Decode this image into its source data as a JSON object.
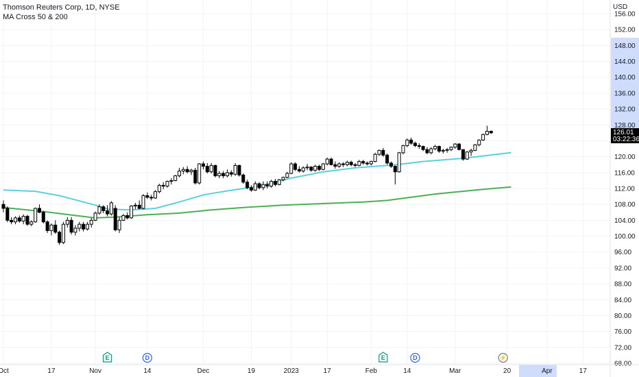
{
  "legend": {
    "symbol_line": "Thomson Reuters Corp, 1D, NYSE",
    "indicator_line": "MA Cross 50 & 200"
  },
  "axis": {
    "currency": "USD",
    "y_ticks": [
      "68.00",
      "72.00",
      "76.00",
      "80.00",
      "84.00",
      "88.00",
      "92.00",
      "96.00",
      "100.00",
      "104.00",
      "108.00",
      "112.00",
      "116.00",
      "120.00",
      "124.00",
      "128.00",
      "132.00",
      "136.00",
      "140.00",
      "144.00",
      "148.00",
      "152.00",
      "156.00"
    ],
    "x_ticks": [
      {
        "label": "Oct",
        "at": 0
      },
      {
        "label": "17",
        "at": 12
      },
      {
        "label": "Nov",
        "at": 23
      },
      {
        "label": "14",
        "at": 36
      },
      {
        "label": "Dec",
        "at": 50
      },
      {
        "label": "19",
        "at": 62
      },
      {
        "label": "2023",
        "at": 72
      },
      {
        "label": "17",
        "at": 81
      },
      {
        "label": "Feb",
        "at": 92
      },
      {
        "label": "14",
        "at": 101
      },
      {
        "label": "Mar",
        "at": 113
      },
      {
        "label": "20",
        "at": 126
      },
      {
        "label": "Apr",
        "at": 136
      },
      {
        "label": "17",
        "at": 145
      }
    ]
  },
  "price_badge": {
    "price": "126.01",
    "countdown": "03:22:36"
  },
  "events": [
    {
      "label": "E",
      "at": 26,
      "type": "earnings",
      "color": "#089981"
    },
    {
      "label": "D",
      "at": 36,
      "type": "dividend",
      "color": "#2962ff"
    },
    {
      "label": "E",
      "at": 95,
      "type": "earnings",
      "color": "#089981"
    },
    {
      "label": "D",
      "at": 103,
      "type": "dividend",
      "color": "#2962ff"
    },
    {
      "label": "⚡",
      "at": 125,
      "type": "split",
      "color": "#787b86"
    }
  ],
  "chart_data": {
    "type": "candlestick",
    "title": "Thomson Reuters Corp, 1D, NYSE",
    "ylim": [
      68,
      156
    ],
    "last_price": 126.01,
    "colors": {
      "up": "#ffffff",
      "down": "#000000",
      "ma50": "#5ad1d8",
      "ma200": "#4caf50"
    },
    "candles": [
      [
        108.0,
        109.0,
        106.0,
        107.0
      ],
      [
        107.0,
        107.5,
        103.5,
        104.0
      ],
      [
        104.0,
        104.8,
        103.0,
        103.6
      ],
      [
        103.6,
        105.0,
        103.0,
        104.6
      ],
      [
        104.6,
        105.2,
        103.4,
        103.8
      ],
      [
        103.8,
        105.5,
        103.0,
        105.0
      ],
      [
        105.0,
        105.4,
        102.6,
        103.0
      ],
      [
        103.0,
        104.0,
        102.5,
        103.6
      ],
      [
        103.6,
        107.2,
        103.4,
        107.0
      ],
      [
        107.0,
        108.0,
        105.8,
        106.0
      ],
      [
        106.0,
        106.4,
        103.2,
        103.6
      ],
      [
        103.6,
        104.0,
        100.8,
        101.4
      ],
      [
        101.4,
        103.2,
        100.2,
        102.8
      ],
      [
        102.8,
        104.0,
        100.6,
        101.0
      ],
      [
        101.0,
        101.4,
        97.8,
        98.4
      ],
      [
        98.4,
        103.6,
        98.0,
        103.0
      ],
      [
        103.0,
        104.8,
        102.2,
        104.0
      ],
      [
        104.0,
        104.8,
        100.4,
        101.0
      ],
      [
        101.0,
        102.8,
        100.2,
        102.0
      ],
      [
        102.0,
        103.6,
        101.2,
        103.0
      ],
      [
        103.0,
        103.6,
        101.2,
        101.8
      ],
      [
        101.8,
        103.6,
        101.4,
        103.0
      ],
      [
        103.0,
        104.6,
        102.2,
        104.0
      ],
      [
        104.0,
        106.2,
        103.8,
        105.8
      ],
      [
        105.8,
        108.0,
        105.4,
        107.4
      ],
      [
        107.4,
        107.8,
        105.8,
        106.4
      ],
      [
        106.4,
        107.8,
        105.0,
        105.6
      ],
      [
        105.6,
        108.8,
        105.2,
        108.4
      ],
      [
        107.0,
        107.8,
        101.2,
        101.6
      ],
      [
        101.6,
        104.8,
        100.8,
        104.0
      ],
      [
        104.0,
        105.6,
        103.8,
        105.2
      ],
      [
        105.2,
        106.0,
        104.2,
        104.6
      ],
      [
        104.6,
        107.8,
        104.4,
        107.6
      ],
      [
        107.6,
        108.4,
        106.8,
        107.8
      ],
      [
        107.8,
        109.0,
        106.8,
        107.0
      ],
      [
        107.0,
        110.6,
        106.8,
        110.2
      ],
      [
        110.2,
        111.0,
        109.4,
        109.8
      ],
      [
        109.8,
        110.4,
        109.0,
        109.6
      ],
      [
        109.6,
        111.6,
        109.4,
        111.2
      ],
      [
        111.2,
        113.2,
        110.8,
        112.8
      ],
      [
        112.8,
        113.6,
        111.8,
        112.6
      ],
      [
        112.6,
        114.0,
        112.2,
        113.8
      ],
      [
        113.8,
        114.6,
        113.0,
        114.0
      ],
      [
        114.0,
        115.4,
        113.8,
        115.2
      ],
      [
        115.2,
        117.2,
        114.8,
        116.4
      ],
      [
        116.4,
        117.4,
        115.6,
        116.8
      ],
      [
        116.8,
        117.6,
        115.8,
        116.2
      ],
      [
        116.2,
        117.0,
        115.4,
        116.6
      ],
      [
        116.6,
        117.2,
        113.0,
        113.4
      ],
      [
        113.4,
        118.4,
        113.0,
        118.2
      ],
      [
        118.2,
        118.8,
        116.8,
        117.6
      ],
      [
        117.6,
        118.4,
        115.8,
        116.2
      ],
      [
        116.2,
        118.4,
        115.8,
        117.8
      ],
      [
        117.8,
        118.0,
        114.8,
        115.2
      ],
      [
        115.2,
        116.4,
        114.6,
        115.8
      ],
      [
        115.8,
        116.4,
        114.6,
        115.2
      ],
      [
        115.2,
        116.8,
        114.8,
        116.0
      ],
      [
        116.0,
        116.6,
        115.0,
        115.6
      ],
      [
        115.6,
        118.4,
        115.2,
        117.8
      ],
      [
        117.8,
        118.0,
        115.0,
        115.4
      ],
      [
        115.4,
        115.8,
        113.2,
        113.6
      ],
      [
        113.6,
        114.2,
        111.8,
        112.2
      ],
      [
        112.2,
        112.8,
        111.2,
        111.6
      ],
      [
        111.6,
        113.8,
        111.4,
        113.2
      ],
      [
        113.2,
        113.6,
        111.8,
        112.2
      ],
      [
        112.2,
        113.8,
        111.6,
        113.0
      ],
      [
        113.0,
        113.8,
        112.0,
        112.6
      ],
      [
        112.6,
        114.2,
        112.2,
        113.8
      ],
      [
        113.8,
        114.4,
        112.6,
        113.0
      ],
      [
        113.0,
        114.4,
        112.8,
        114.2
      ],
      [
        114.2,
        115.0,
        113.8,
        114.8
      ],
      [
        114.8,
        116.2,
        114.6,
        115.8
      ],
      [
        115.8,
        118.6,
        115.6,
        118.2
      ],
      [
        118.2,
        118.6,
        116.4,
        116.8
      ],
      [
        116.8,
        117.6,
        116.0,
        116.4
      ],
      [
        116.4,
        117.6,
        116.0,
        117.2
      ],
      [
        117.2,
        118.2,
        116.6,
        117.4
      ],
      [
        117.4,
        117.6,
        116.2,
        116.6
      ],
      [
        116.6,
        118.0,
        116.2,
        117.6
      ],
      [
        117.6,
        118.0,
        116.4,
        116.8
      ],
      [
        116.8,
        118.4,
        116.6,
        118.2
      ],
      [
        118.2,
        119.8,
        117.8,
        119.4
      ],
      [
        119.4,
        119.8,
        117.8,
        118.0
      ],
      [
        118.0,
        118.8,
        117.0,
        117.6
      ],
      [
        117.6,
        118.6,
        117.2,
        118.2
      ],
      [
        118.2,
        118.6,
        117.4,
        118.0
      ],
      [
        118.0,
        119.0,
        117.6,
        118.6
      ],
      [
        118.6,
        119.0,
        117.6,
        118.0
      ],
      [
        118.0,
        118.4,
        117.4,
        117.8
      ],
      [
        117.8,
        119.2,
        117.6,
        118.8
      ],
      [
        118.8,
        119.2,
        118.0,
        118.4
      ],
      [
        118.4,
        118.8,
        117.8,
        118.2
      ],
      [
        118.2,
        119.0,
        117.8,
        118.8
      ],
      [
        118.8,
        121.0,
        118.6,
        120.6
      ],
      [
        120.6,
        121.8,
        120.2,
        121.6
      ],
      [
        121.6,
        122.2,
        120.0,
        120.4
      ],
      [
        120.4,
        120.8,
        118.0,
        118.4
      ],
      [
        118.4,
        118.8,
        117.2,
        117.6
      ],
      [
        117.6,
        117.8,
        113.0,
        116.2
      ],
      [
        116.2,
        121.2,
        116.0,
        121.0
      ],
      [
        121.0,
        123.0,
        120.6,
        122.8
      ],
      [
        122.8,
        124.6,
        122.4,
        124.2
      ],
      [
        124.2,
        124.8,
        123.0,
        123.4
      ],
      [
        123.4,
        123.8,
        122.4,
        122.8
      ],
      [
        122.8,
        123.4,
        122.0,
        122.6
      ],
      [
        122.6,
        122.8,
        121.4,
        121.8
      ],
      [
        121.8,
        122.4,
        120.6,
        121.0
      ],
      [
        121.0,
        122.4,
        120.6,
        122.0
      ],
      [
        122.0,
        123.0,
        121.6,
        122.6
      ],
      [
        122.6,
        122.8,
        121.0,
        121.4
      ],
      [
        121.4,
        122.0,
        120.8,
        121.6
      ],
      [
        121.6,
        122.2,
        121.0,
        121.8
      ],
      [
        121.8,
        122.6,
        121.4,
        122.4
      ],
      [
        122.4,
        123.4,
        122.0,
        123.2
      ],
      [
        123.2,
        123.4,
        121.6,
        121.8
      ],
      [
        121.8,
        121.8,
        119.0,
        119.4
      ],
      [
        119.4,
        121.4,
        119.2,
        121.2
      ],
      [
        121.2,
        122.0,
        120.2,
        121.6
      ],
      [
        121.6,
        123.2,
        121.4,
        123.0
      ],
      [
        123.0,
        124.4,
        122.6,
        124.2
      ],
      [
        124.2,
        125.8,
        124.0,
        125.6
      ],
      [
        125.6,
        127.8,
        125.4,
        126.4
      ],
      [
        126.4,
        126.6,
        125.8,
        126.01
      ]
    ],
    "ma50": [
      [
        0,
        111.6
      ],
      [
        8,
        111.3
      ],
      [
        14,
        110.2
      ],
      [
        20,
        108.6
      ],
      [
        23,
        107.8
      ],
      [
        26,
        106.8
      ],
      [
        32,
        106.6
      ],
      [
        38,
        107.0
      ],
      [
        44,
        108.6
      ],
      [
        50,
        110.4
      ],
      [
        56,
        111.4
      ],
      [
        64,
        112.6
      ],
      [
        72,
        114.6
      ],
      [
        80,
        116.2
      ],
      [
        88,
        117.2
      ],
      [
        96,
        117.8
      ],
      [
        100,
        118.2
      ],
      [
        105,
        118.8
      ],
      [
        110,
        119.2
      ],
      [
        115,
        119.6
      ],
      [
        120,
        120.2
      ],
      [
        125,
        120.8
      ],
      [
        127,
        121.0
      ]
    ],
    "ma200": [
      [
        0,
        107.2
      ],
      [
        10,
        106.2
      ],
      [
        18,
        105.2
      ],
      [
        23,
        104.6
      ],
      [
        28,
        104.8
      ],
      [
        36,
        105.4
      ],
      [
        44,
        105.8
      ],
      [
        52,
        106.6
      ],
      [
        60,
        107.2
      ],
      [
        70,
        107.8
      ],
      [
        80,
        108.2
      ],
      [
        90,
        108.6
      ],
      [
        96,
        109.0
      ],
      [
        102,
        109.8
      ],
      [
        108,
        110.6
      ],
      [
        114,
        111.2
      ],
      [
        120,
        111.8
      ],
      [
        127,
        112.4
      ]
    ]
  }
}
